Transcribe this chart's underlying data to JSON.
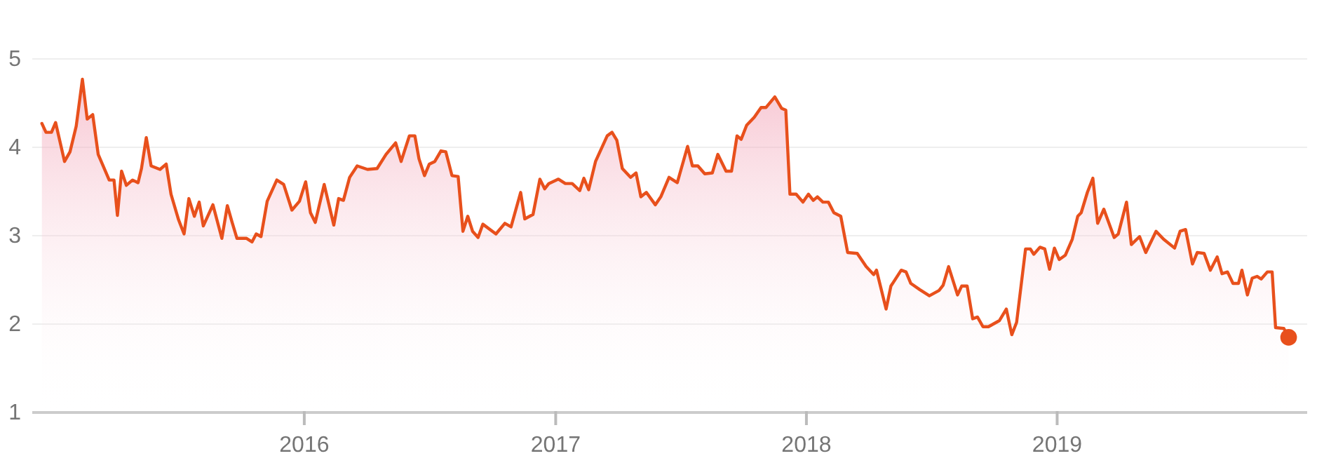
{
  "chart_data": {
    "type": "area",
    "xlim": [
      "2014-12-01",
      "2019-12-31"
    ],
    "ylim": [
      1,
      5
    ],
    "yticks": [
      1,
      2,
      3,
      4,
      5
    ],
    "xticks": [
      "2016",
      "2017",
      "2018",
      "2019"
    ],
    "grid": "y",
    "line_style": "solid",
    "series": [
      {
        "color": "#e8501c",
        "x": [
          "2014-12-15",
          "2014-12-21",
          "2014-12-29",
          "2015-01-04",
          "2015-01-17",
          "2015-01-25",
          "2015-02-03",
          "2015-02-12",
          "2015-02-19",
          "2015-02-27",
          "2015-03-07",
          "2015-03-23",
          "2015-03-30",
          "2015-04-04",
          "2015-04-10",
          "2015-04-17",
          "2015-04-26",
          "2015-05-04",
          "2015-05-09",
          "2015-05-16",
          "2015-05-23",
          "2015-06-05",
          "2015-06-14",
          "2015-06-21",
          "2015-07-02",
          "2015-07-10",
          "2015-07-17",
          "2015-07-25",
          "2015-08-01",
          "2015-08-07",
          "2015-08-21",
          "2015-09-03",
          "2015-09-11",
          "2015-09-18",
          "2015-09-25",
          "2015-10-09",
          "2015-10-17",
          "2015-10-23",
          "2015-10-30",
          "2015-11-08",
          "2015-11-22",
          "2015-12-02",
          "2015-12-14",
          "2015-12-25",
          "2016-01-03",
          "2016-01-10",
          "2016-01-17",
          "2016-01-30",
          "2016-02-13",
          "2016-02-20",
          "2016-02-27",
          "2016-03-07",
          "2016-03-18",
          "2016-04-02",
          "2016-04-16",
          "2016-04-29",
          "2016-05-13",
          "2016-05-21",
          "2016-06-02",
          "2016-06-10",
          "2016-06-16",
          "2016-06-24",
          "2016-07-01",
          "2016-07-09",
          "2016-07-18",
          "2016-07-25",
          "2016-08-03",
          "2016-08-12",
          "2016-08-19",
          "2016-08-26",
          "2016-09-02",
          "2016-09-10",
          "2016-09-17",
          "2016-10-06",
          "2016-10-19",
          "2016-10-28",
          "2016-11-11",
          "2016-11-17",
          "2016-11-29",
          "2016-12-09",
          "2016-12-16",
          "2016-12-22",
          "2017-01-05",
          "2017-01-15",
          "2017-01-25",
          "2017-02-05",
          "2017-02-11",
          "2017-02-18",
          "2017-02-28",
          "2017-03-17",
          "2017-03-24",
          "2017-03-31",
          "2017-04-08",
          "2017-04-20",
          "2017-04-28",
          "2017-05-05",
          "2017-05-13",
          "2017-05-26",
          "2017-06-03",
          "2017-06-15",
          "2017-06-27",
          "2017-07-12",
          "2017-07-19",
          "2017-07-27",
          "2017-08-06",
          "2017-08-17",
          "2017-08-25",
          "2017-09-06",
          "2017-09-14",
          "2017-09-22",
          "2017-09-28",
          "2017-10-06",
          "2017-10-17",
          "2017-10-27",
          "2017-11-03",
          "2017-11-16",
          "2017-11-26",
          "2017-12-02",
          "2017-12-08",
          "2017-12-17",
          "2017-12-27",
          "2018-01-04",
          "2018-01-11",
          "2018-01-17",
          "2018-01-25",
          "2018-02-02",
          "2018-02-10",
          "2018-02-20",
          "2018-03-02",
          "2018-03-16",
          "2018-03-29",
          "2018-04-09",
          "2018-04-13",
          "2018-04-27",
          "2018-05-04",
          "2018-05-19",
          "2018-05-26",
          "2018-06-02",
          "2018-06-15",
          "2018-06-29",
          "2018-07-13",
          "2018-07-19",
          "2018-07-27",
          "2018-08-09",
          "2018-08-15",
          "2018-08-23",
          "2018-08-31",
          "2018-09-07",
          "2018-09-15",
          "2018-09-23",
          "2018-10-09",
          "2018-10-19",
          "2018-10-27",
          "2018-11-03",
          "2018-11-16",
          "2018-11-23",
          "2018-11-28",
          "2018-12-07",
          "2018-12-14",
          "2018-12-21",
          "2018-12-28",
          "2019-01-04",
          "2019-01-13",
          "2019-01-23",
          "2019-01-31",
          "2019-02-05",
          "2019-02-14",
          "2019-02-22",
          "2019-03-01",
          "2019-03-10",
          "2019-03-25",
          "2019-03-31",
          "2019-04-12",
          "2019-04-19",
          "2019-05-01",
          "2019-05-10",
          "2019-05-25",
          "2019-06-05",
          "2019-06-21",
          "2019-06-29",
          "2019-07-07",
          "2019-07-17",
          "2019-07-24",
          "2019-08-03",
          "2019-08-12",
          "2019-08-22",
          "2019-08-29",
          "2019-09-06",
          "2019-09-14",
          "2019-09-22",
          "2019-09-27",
          "2019-10-05",
          "2019-10-12",
          "2019-10-19",
          "2019-10-25",
          "2019-11-03",
          "2019-11-10",
          "2019-11-15",
          "2019-11-27",
          "2019-12-04"
        ],
        "values": [
          4.27,
          4.17,
          4.17,
          4.28,
          3.84,
          3.95,
          4.24,
          4.77,
          4.32,
          4.37,
          3.92,
          3.63,
          3.63,
          3.23,
          3.73,
          3.57,
          3.63,
          3.6,
          3.76,
          4.11,
          3.79,
          3.75,
          3.81,
          3.47,
          3.18,
          3.02,
          3.42,
          3.22,
          3.38,
          3.11,
          3.35,
          2.97,
          3.34,
          3.15,
          2.97,
          2.97,
          2.93,
          3.02,
          2.99,
          3.39,
          3.63,
          3.58,
          3.29,
          3.39,
          3.61,
          3.26,
          3.15,
          3.58,
          3.12,
          3.42,
          3.4,
          3.66,
          3.79,
          3.75,
          3.76,
          3.92,
          4.05,
          3.84,
          4.13,
          4.13,
          3.87,
          3.68,
          3.81,
          3.84,
          3.96,
          3.95,
          3.68,
          3.67,
          3.05,
          3.22,
          3.05,
          2.98,
          3.13,
          3.02,
          3.14,
          3.1,
          3.49,
          3.19,
          3.24,
          3.64,
          3.53,
          3.59,
          3.64,
          3.59,
          3.59,
          3.51,
          3.65,
          3.52,
          3.84,
          4.13,
          4.17,
          4.08,
          3.76,
          3.66,
          3.71,
          3.44,
          3.49,
          3.35,
          3.44,
          3.66,
          3.6,
          4.01,
          3.79,
          3.79,
          3.7,
          3.71,
          3.92,
          3.73,
          3.73,
          4.13,
          4.09,
          4.25,
          4.34,
          4.45,
          4.45,
          4.57,
          4.44,
          4.42,
          3.47,
          3.47,
          3.38,
          3.47,
          3.4,
          3.44,
          3.38,
          3.38,
          3.26,
          3.22,
          2.81,
          2.8,
          2.65,
          2.56,
          2.61,
          2.17,
          2.43,
          2.61,
          2.59,
          2.46,
          2.39,
          2.32,
          2.38,
          2.44,
          2.65,
          2.33,
          2.43,
          2.43,
          2.06,
          2.08,
          1.97,
          1.97,
          2.04,
          2.17,
          1.88,
          2.02,
          2.85,
          2.85,
          2.79,
          2.87,
          2.85,
          2.62,
          2.86,
          2.73,
          2.78,
          2.96,
          3.22,
          3.26,
          3.49,
          3.65,
          3.14,
          3.3,
          2.98,
          3.02,
          3.38,
          2.9,
          2.99,
          2.81,
          3.05,
          2.96,
          2.86,
          3.05,
          3.07,
          2.68,
          2.81,
          2.8,
          2.61,
          2.76,
          2.57,
          2.59,
          2.46,
          2.46,
          2.61,
          2.33,
          2.52,
          2.54,
          2.51,
          2.59,
          2.59,
          1.96,
          1.95,
          1.85
        ]
      },
      {
        "type": "scatter",
        "color": "#e8501c",
        "marker": "circle",
        "x": [
          "2019-12-04"
        ],
        "values": [
          1.85
        ]
      }
    ]
  }
}
